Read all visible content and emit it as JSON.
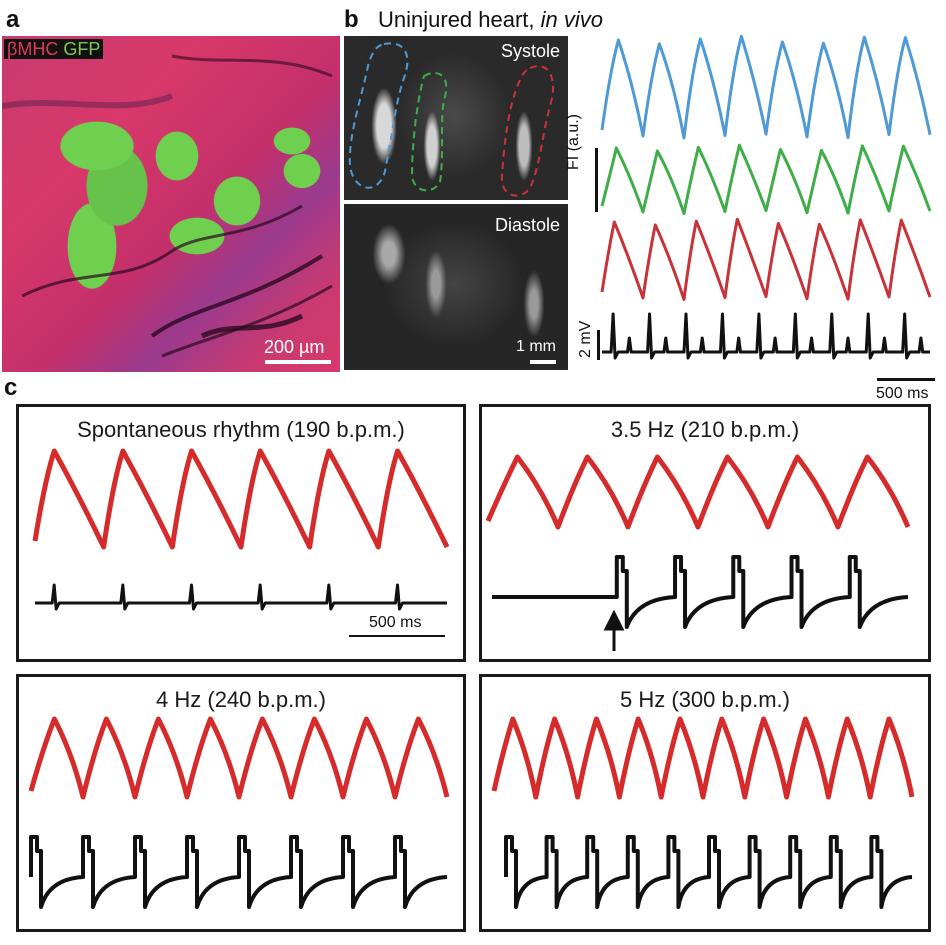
{
  "panel_a": {
    "letter": "a",
    "label_red": "βMHC",
    "label_green": "GFP",
    "scale_label": "200 µm",
    "colors": {
      "red": "#e03a5a",
      "green": "#7ec850"
    }
  },
  "panel_b": {
    "letter": "b",
    "title_main": "Uninjured heart, ",
    "title_italic": "in vivo",
    "systole_label": "Systole",
    "diastole_label": "Diastole",
    "scale_label": "1 mm",
    "fi_axis_label": "FI (a.u.)",
    "voltage_scale_label": "2 mV",
    "time_scale_label": "500 ms",
    "colors": {
      "blue": "#4d9ad6",
      "green": "#3fae4a",
      "red": "#c8333a",
      "black": "#111111"
    }
  },
  "panel_c": {
    "letter": "c",
    "boxes": [
      {
        "title": "Spontaneous rhythm (190 b.p.m.)",
        "scale_label": "500 ms",
        "cycles": 6
      },
      {
        "title": "3.5 Hz (210 b.p.m.)",
        "cycles": 6
      },
      {
        "title": "4 Hz (240 b.p.m.)",
        "cycles": 8
      },
      {
        "title": "5 Hz (300 b.p.m.)",
        "cycles": 10
      }
    ],
    "colors": {
      "trace_red": "#d62b2b",
      "trace_black": "#111111"
    }
  }
}
